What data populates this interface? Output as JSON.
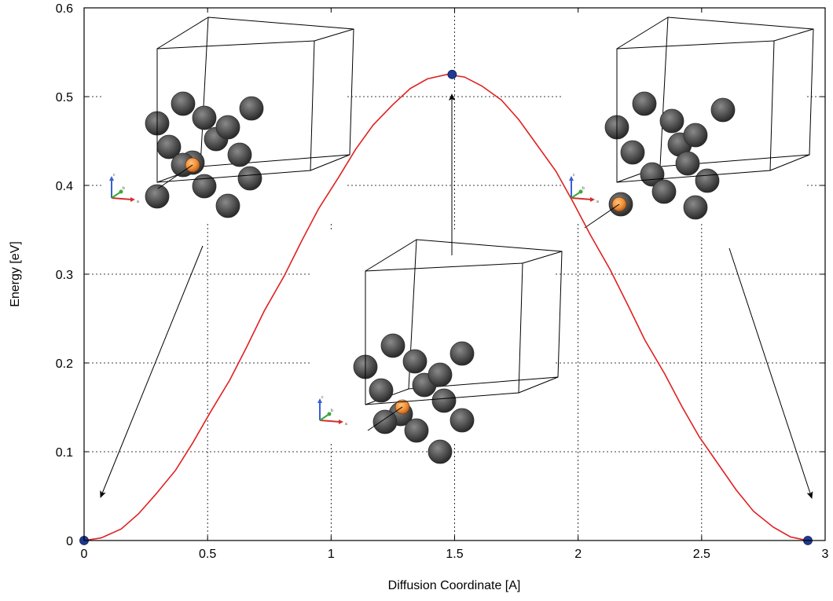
{
  "chart_data": {
    "type": "line",
    "xlabel": "Diffusion Coordinate [A]",
    "ylabel": "Energy [eV]",
    "xlim": [
      0,
      3
    ],
    "ylim": [
      0,
      0.6
    ],
    "xticks": [
      "0",
      "0.5",
      "1",
      "1.5",
      "2",
      "2.5",
      "3"
    ],
    "yticks": [
      "0",
      "0.1",
      "0.2",
      "0.3",
      "0.4",
      "0.5",
      "0.6"
    ],
    "grid": true,
    "series": [
      {
        "color": "#e02020",
        "x": [
          0,
          0.07,
          0.15,
          0.22,
          0.29,
          0.37,
          0.44,
          0.51,
          0.59,
          0.66,
          0.73,
          0.81,
          0.88,
          0.95,
          1.03,
          1.1,
          1.17,
          1.25,
          1.32,
          1.39,
          1.47,
          1.54,
          1.61,
          1.69,
          1.76,
          1.83,
          1.91,
          1.98,
          2.05,
          2.13,
          2.2,
          2.27,
          2.35,
          2.42,
          2.49,
          2.57,
          2.64,
          2.71,
          2.79,
          2.86,
          2.93
        ],
        "y": [
          0,
          0.003,
          0.013,
          0.03,
          0.052,
          0.079,
          0.11,
          0.144,
          0.181,
          0.219,
          0.259,
          0.298,
          0.337,
          0.374,
          0.409,
          0.441,
          0.468,
          0.491,
          0.509,
          0.52,
          0.525,
          0.522,
          0.512,
          0.496,
          0.474,
          0.447,
          0.416,
          0.381,
          0.344,
          0.305,
          0.266,
          0.226,
          0.188,
          0.151,
          0.117,
          0.085,
          0.057,
          0.033,
          0.015,
          0.004,
          0
        ]
      }
    ],
    "markers": {
      "color": "#1f3a93",
      "points": [
        [
          0,
          0
        ],
        [
          1.49,
          0.525
        ],
        [
          2.93,
          0
        ]
      ]
    },
    "inset_axis_letters": [
      "c",
      "b",
      "a"
    ]
  }
}
